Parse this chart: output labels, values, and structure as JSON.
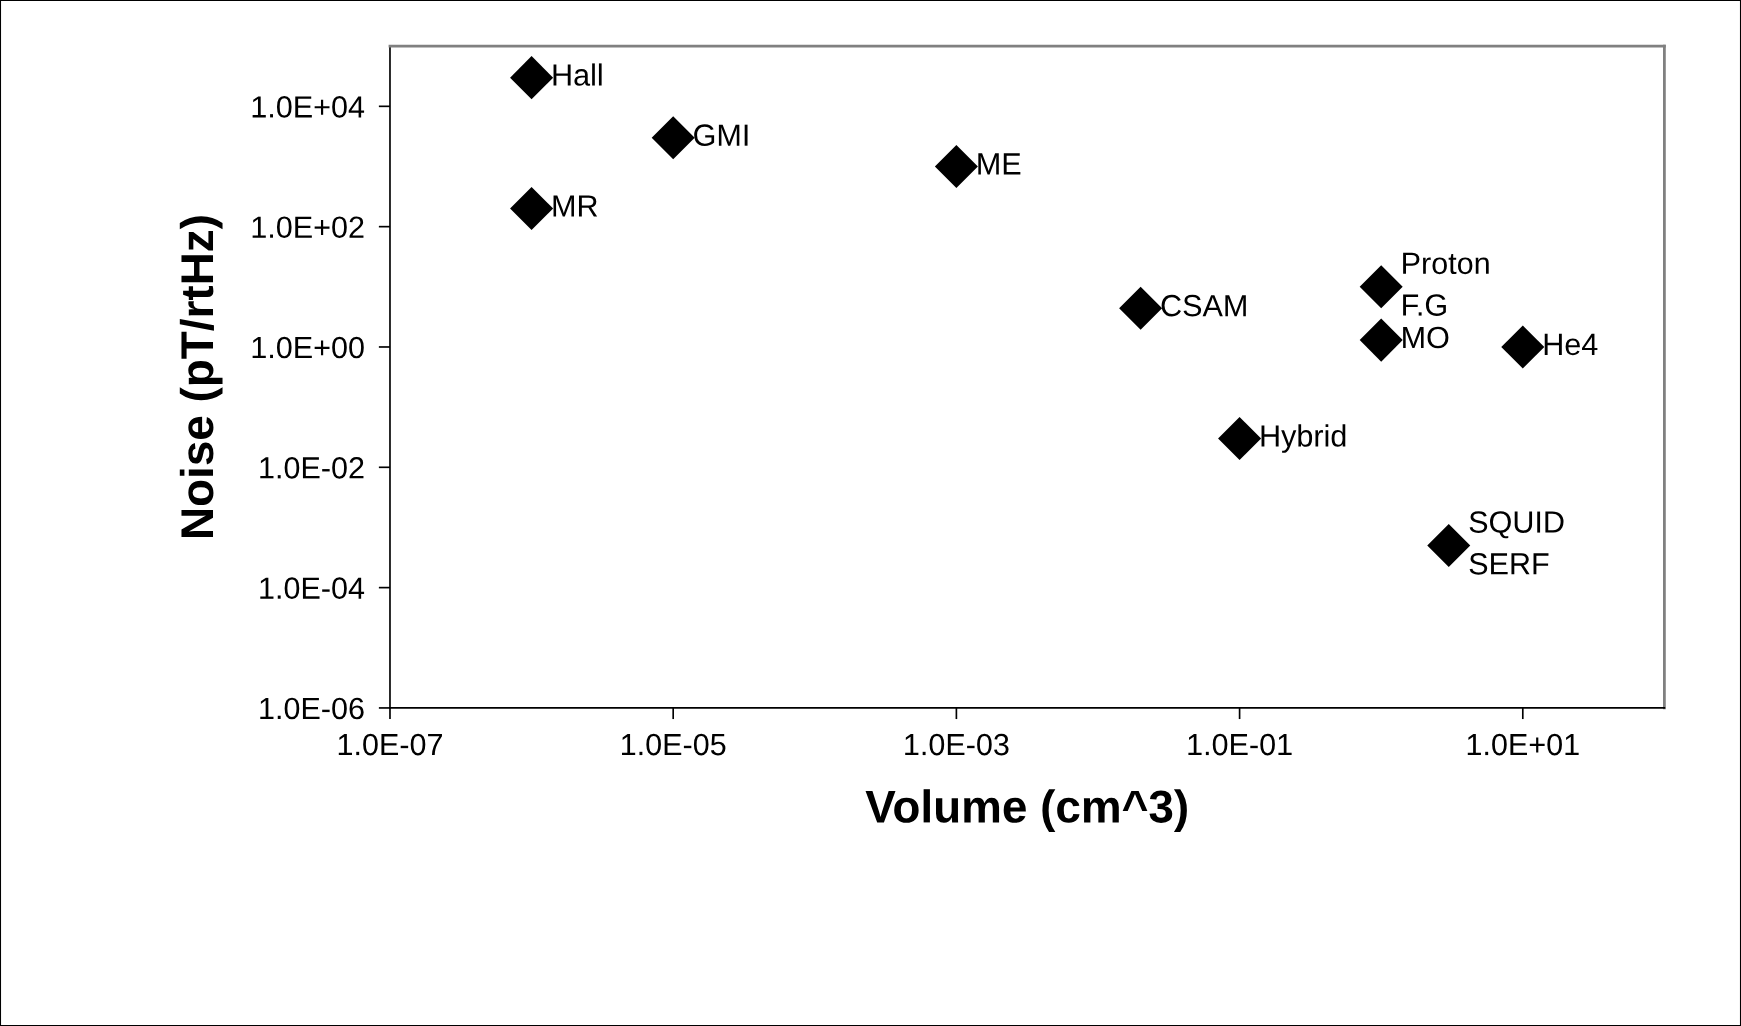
{
  "chart_data": {
    "type": "scatter",
    "xlabel": "Volume (cm^3)",
    "ylabel": "Noise (pT/rtHz)",
    "log": "xy",
    "grid": false,
    "legend": false,
    "marker": "diamond",
    "xlim": [
      1e-07,
      100
    ],
    "ylim": [
      1e-06,
      100000
    ],
    "xticks": [
      {
        "value": 1e-07,
        "label": "1.0E-07"
      },
      {
        "value": 1e-05,
        "label": "1.0E-05"
      },
      {
        "value": 0.001,
        "label": "1.0E-03"
      },
      {
        "value": 0.1,
        "label": "1.0E-01"
      },
      {
        "value": 10,
        "label": "1.0E+01"
      }
    ],
    "yticks": [
      {
        "value": 1e-06,
        "label": "1.0E-06"
      },
      {
        "value": 0.0001,
        "label": "1.0E-04"
      },
      {
        "value": 0.01,
        "label": "1.0E-02"
      },
      {
        "value": 1,
        "label": "1.0E+00"
      },
      {
        "value": 100,
        "label": "1.0E+02"
      },
      {
        "value": 10000,
        "label": "1.0E+04"
      }
    ],
    "series": [
      {
        "color": "#000000",
        "x": [
          1e-06,
          1e-06,
          1e-05,
          0.001,
          0.02,
          0.1,
          1,
          1,
          10,
          3
        ],
        "values": [
          30000,
          200,
          3000,
          1000,
          4.4,
          0.03,
          10,
          1.3,
          1,
          0.0005
        ]
      }
    ],
    "annotations": [
      {
        "text": "Hall",
        "x": 1e-06,
        "y": 30000
      },
      {
        "text": "MR",
        "x": 1e-06,
        "y": 200
      },
      {
        "text": "GMI",
        "x": 1e-05,
        "y": 3000
      },
      {
        "text": "ME",
        "x": 0.001,
        "y": 1000
      },
      {
        "text": "CSAM",
        "x": 0.02,
        "y": 4.4
      },
      {
        "text": "Hybrid",
        "x": 0.1,
        "y": 0.03
      },
      {
        "text": "Proton\nF.G",
        "x": 1,
        "y": 10
      },
      {
        "text": "MO",
        "x": 1,
        "y": 1.3
      },
      {
        "text": "He4",
        "x": 10,
        "y": 1
      },
      {
        "text": "SQUID\nSERF",
        "x": 3,
        "y": 0.0005
      }
    ]
  }
}
